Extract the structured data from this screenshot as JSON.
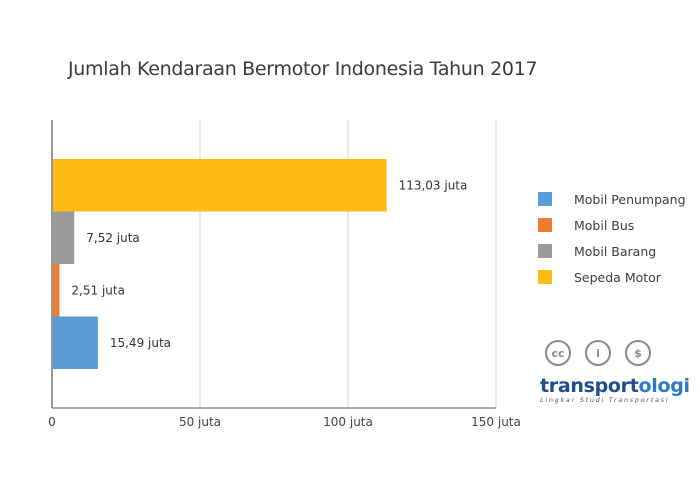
{
  "chart_data": {
    "type": "bar",
    "orientation": "horizontal",
    "title": "Jumlah Kendaraan Bermotor Indonesia Tahun 2017",
    "xlabel": "",
    "ylabel": "",
    "xlim": [
      0,
      150
    ],
    "xticks": [
      {
        "value": 0,
        "label": "0"
      },
      {
        "value": 50,
        "label": "50 juta"
      },
      {
        "value": 100,
        "label": "100 juta"
      },
      {
        "value": 150,
        "label": "150 juta"
      }
    ],
    "grid": "vertical",
    "legend_position": "right",
    "bars": [
      {
        "name": "Sepeda Motor",
        "value": 113.03,
        "label": "113,03 juta",
        "color": "#FDBB13"
      },
      {
        "name": "Mobil Barang",
        "value": 7.52,
        "label": "7,52 juta",
        "color": "#9B9B9B"
      },
      {
        "name": "Mobil Bus",
        "value": 2.51,
        "label": "2,51 juta",
        "color": "#EE7D31"
      },
      {
        "name": "Mobil Penumpang",
        "value": 15.49,
        "label": "15,49 juta",
        "color": "#5A9BD5"
      }
    ],
    "legend": [
      {
        "name": "Mobil Penumpang",
        "color": "#5A9BD5"
      },
      {
        "name": "Mobil Bus",
        "color": "#EE7D31"
      },
      {
        "name": "Mobil Barang",
        "color": "#9B9B9B"
      },
      {
        "name": "Sepeda Motor",
        "color": "#FDBB13"
      }
    ]
  },
  "badges": {
    "icons": [
      "cc-icon",
      "by-icon",
      "nc-icon"
    ],
    "cc_text": "cc",
    "by_text": "i",
    "nc_text": "$"
  },
  "brand": {
    "name_part1": "transport",
    "name_part2": "ologi",
    "tagline": "Lingkar Studi Transportasi",
    "color": "#1f4e8c"
  }
}
